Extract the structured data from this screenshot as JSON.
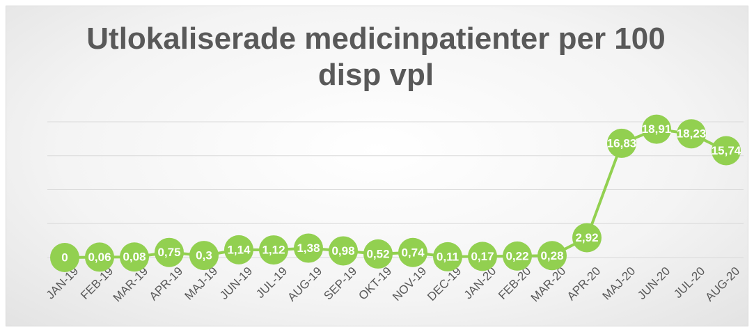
{
  "chart_data": {
    "type": "line",
    "title": "Utlokaliserade medicinpatienter per 100 disp vpl",
    "categories": [
      "JAN-19",
      "FEB-19",
      "MAR-19",
      "APR-19",
      "MAJ-19",
      "JUN-19",
      "JUL-19",
      "AUG-19",
      "SEP-19",
      "OKT-19",
      "NOV-19",
      "DEC-19",
      "JAN-20",
      "FEB-20",
      "MAR-20",
      "APR-20",
      "MAJ-20",
      "JUN-20",
      "JUL-20",
      "AUG-20"
    ],
    "series": [
      {
        "color": "#92d050",
        "values": [
          0,
          0.06,
          0.08,
          0.75,
          0.3,
          1.14,
          1.12,
          1.38,
          0.98,
          0.52,
          0.74,
          0.11,
          0.17,
          0.22,
          0.28,
          2.92,
          16.83,
          18.91,
          18.23,
          15.74
        ],
        "value_labels": [
          "0",
          "0,06",
          "0,08",
          "0,75",
          "0,3",
          "1,14",
          "1,12",
          "1,38",
          "0,98",
          "0,52",
          "0,74",
          "0,11",
          "0,17",
          "0,22",
          "0,28",
          "2,92",
          "16,83",
          "18,91",
          "18,23",
          "15,74"
        ]
      }
    ],
    "ylim": [
      0,
      20
    ],
    "yticks": [
      0,
      5,
      10,
      15,
      20
    ],
    "grid": true
  }
}
